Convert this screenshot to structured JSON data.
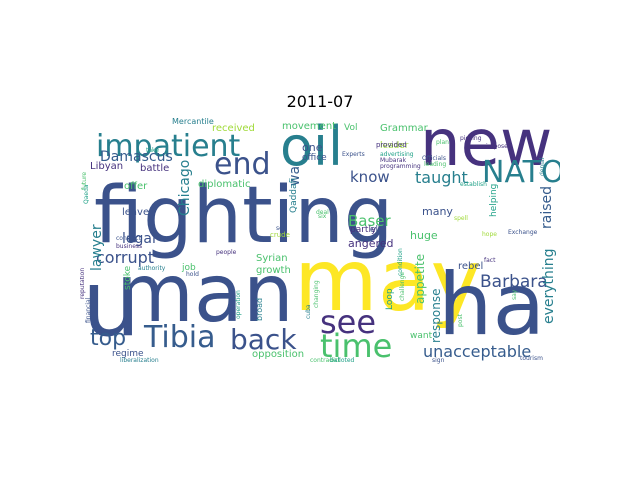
{
  "title": "2011-07",
  "palette": {
    "darkPurple": "#46327e",
    "darkBlue": "#365c8d",
    "blue": "#3b528b",
    "teal": "#277f8e",
    "green": "#1fa187",
    "lightGreen": "#4ac16d",
    "lime": "#a0da39",
    "yellow": "#fde725"
  },
  "words": [
    {
      "text": "fighting",
      "color": "#3b528b"
    },
    {
      "text": "man",
      "color": "#3b528b"
    },
    {
      "text": "may",
      "color": "#fde725"
    },
    {
      "text": "new",
      "color": "#46327e"
    },
    {
      "text": "ha",
      "color": "#3b528b"
    },
    {
      "text": "oil",
      "color": "#277f8e"
    },
    {
      "text": "u",
      "color": "#3b528b"
    },
    {
      "text": "impatient",
      "color": "#277f8e"
    },
    {
      "text": "Tibia",
      "color": "#365c8d"
    },
    {
      "text": "back",
      "color": "#3b528b"
    },
    {
      "text": "NATO",
      "color": "#277f8e"
    },
    {
      "text": "time",
      "color": "#4ac16d"
    },
    {
      "text": "end",
      "color": "#3b528b"
    },
    {
      "text": "see",
      "color": "#46327e"
    },
    {
      "text": "top",
      "color": "#365c8d"
    },
    {
      "text": "Barbara",
      "color": "#3b528b"
    },
    {
      "text": "corrupt",
      "color": "#3b528b"
    },
    {
      "text": "unacceptable",
      "color": "#365c8d"
    },
    {
      "text": "taught",
      "color": "#277f8e"
    },
    {
      "text": "know",
      "color": "#3b528b"
    },
    {
      "text": "lawyer",
      "color": "#277f8e"
    },
    {
      "text": "Damascus",
      "color": "#365c8d"
    },
    {
      "text": "Baser",
      "color": "#4ac16d"
    },
    {
      "text": "legal",
      "color": "#3b528b"
    },
    {
      "text": "raised",
      "color": "#365c8d"
    },
    {
      "text": "everything",
      "color": "#277f8e"
    },
    {
      "text": "Chicago",
      "color": "#277f8e"
    },
    {
      "text": "response",
      "color": "#277f8e"
    },
    {
      "text": "appetite",
      "color": "#4ac16d"
    },
    {
      "text": "wa",
      "color": "#365c8d"
    },
    {
      "text": "movement",
      "color": "#4ac16d"
    },
    {
      "text": "Grammar",
      "color": "#4ac16d"
    },
    {
      "text": "office",
      "color": "#3b528b"
    },
    {
      "text": "one",
      "color": "#3b528b"
    },
    {
      "text": "huge",
      "color": "#4ac16d"
    },
    {
      "text": "many",
      "color": "#3b528b"
    },
    {
      "text": "rebel",
      "color": "#3b528b"
    },
    {
      "text": "angered",
      "color": "#46327e"
    },
    {
      "text": "Syrian",
      "color": "#4ac16d"
    },
    {
      "text": "growth",
      "color": "#4ac16d"
    },
    {
      "text": "opposition",
      "color": "#4ac16d"
    },
    {
      "text": "Libyan",
      "color": "#46327e"
    },
    {
      "text": "battle",
      "color": "#46327e"
    },
    {
      "text": "offer",
      "color": "#4ac16d"
    },
    {
      "text": "diplomatic",
      "color": "#4ac16d"
    },
    {
      "text": "received",
      "color": "#a0da39"
    },
    {
      "text": "leave",
      "color": "#3b528b"
    },
    {
      "text": "job",
      "color": "#4ac16d"
    },
    {
      "text": "regime",
      "color": "#3b528b"
    },
    {
      "text": "want",
      "color": "#4ac16d"
    },
    {
      "text": "el",
      "color": "#3b528b"
    },
    {
      "text": "partly",
      "color": "#46327e"
    },
    {
      "text": "Vol",
      "color": "#4ac16d"
    },
    {
      "text": "leader",
      "color": "#a0da39"
    },
    {
      "text": "Qaddafi",
      "color": "#277f8e"
    },
    {
      "text": "helping",
      "color": "#1fa187"
    },
    {
      "text": "stoke",
      "color": "#4ac16d"
    },
    {
      "text": "Loop",
      "color": "#1fa187"
    },
    {
      "text": "broad",
      "color": "#277f8e"
    },
    {
      "text": "Mercantile",
      "color": "#277f8e"
    },
    {
      "text": "provided",
      "color": "#46327e"
    },
    {
      "text": "Experts",
      "color": "#3b528b"
    },
    {
      "text": "advertising",
      "color": "#1fa187"
    },
    {
      "text": "plan",
      "color": "#4ac16d"
    },
    {
      "text": "leading",
      "color": "#4ac16d"
    },
    {
      "text": "imposed",
      "color": "#46327e"
    },
    {
      "text": "Officials",
      "color": "#3b528b"
    },
    {
      "text": "programming",
      "color": "#46327e"
    },
    {
      "text": "establish",
      "color": "#1fa187"
    },
    {
      "text": "picking",
      "color": "#46327e"
    },
    {
      "text": "Mubarak",
      "color": "#46327e"
    },
    {
      "text": "six",
      "color": "#4ac16d"
    },
    {
      "text": "crude",
      "color": "#a0da39"
    },
    {
      "text": "people",
      "color": "#46327e"
    },
    {
      "text": "Exchange",
      "color": "#3b528b"
    },
    {
      "text": "authority",
      "color": "#277f8e"
    },
    {
      "text": "contract",
      "color": "#3b528b"
    },
    {
      "text": "business",
      "color": "#46327e"
    },
    {
      "text": "take",
      "color": "#1fa187"
    },
    {
      "text": "future",
      "color": "#4ac16d"
    },
    {
      "text": "Qaeda",
      "color": "#1fa187"
    },
    {
      "text": "reputation",
      "color": "#46327e"
    },
    {
      "text": "financial",
      "color": "#3b528b"
    },
    {
      "text": "tourism",
      "color": "#3b528b"
    },
    {
      "text": "liberalization",
      "color": "#277f8e"
    },
    {
      "text": "hold",
      "color": "#3b528b"
    },
    {
      "text": "sign",
      "color": "#3b528b"
    },
    {
      "text": "fact",
      "color": "#46327e"
    },
    {
      "text": "hope",
      "color": "#a0da39"
    },
    {
      "text": "spell",
      "color": "#a0da39"
    },
    {
      "text": "challenge",
      "color": "#4ac16d"
    },
    {
      "text": "post",
      "color": "#4ac16d"
    },
    {
      "text": "say",
      "color": "#4ac16d"
    },
    {
      "text": "denial",
      "color": "#277f8e"
    },
    {
      "text": "operation",
      "color": "#1fa187"
    },
    {
      "text": "changing",
      "color": "#4ac16d"
    },
    {
      "text": "cuba",
      "color": "#277f8e"
    },
    {
      "text": "condition",
      "color": "#1fa187"
    },
    {
      "text": "set",
      "color": "#3b528b"
    },
    {
      "text": "deal",
      "color": "#4ac16d"
    },
    {
      "text": "contradict",
      "color": "#4ac16d"
    },
    {
      "text": "balloted",
      "color": "#1fa187"
    }
  ]
}
